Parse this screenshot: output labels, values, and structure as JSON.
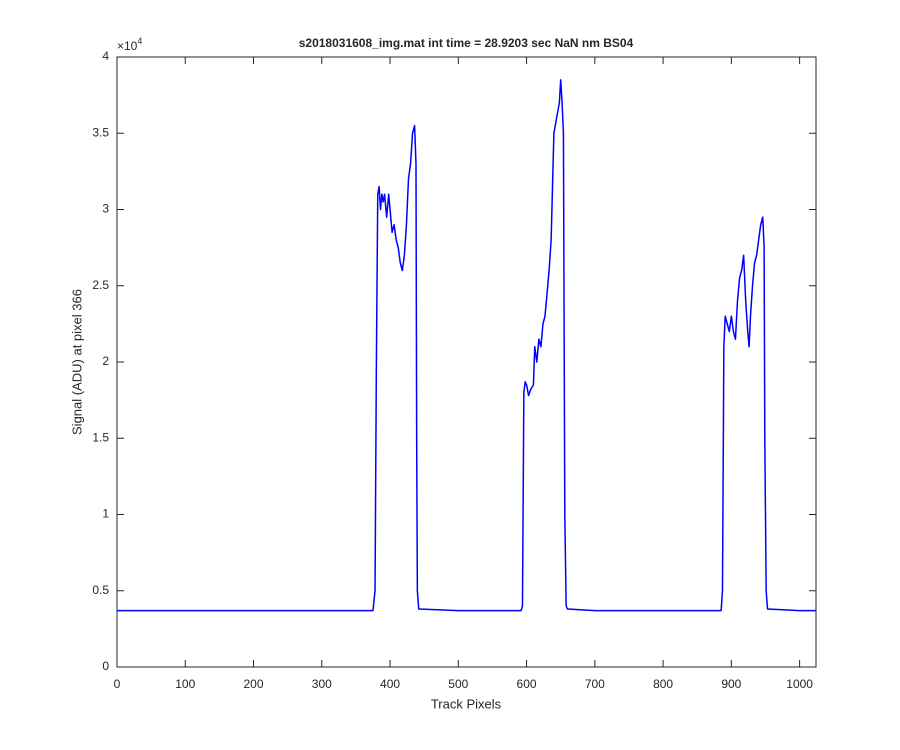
{
  "chart_data": {
    "type": "line",
    "title": "s2018031608_img.mat int time = 28.9203 sec  NaN nm BS04",
    "x_label": "Track Pixels",
    "y_label": "Signal (ADU) at pixel 366",
    "y_multiplier_label": "×10",
    "y_exponent": 4,
    "color": "#0000ff",
    "xlim": [
      0,
      1024
    ],
    "ylim": [
      0,
      4
    ],
    "xticks": [
      0,
      100,
      200,
      300,
      400,
      500,
      600,
      700,
      800,
      900,
      1000
    ],
    "yticks": [
      0,
      0.5,
      1,
      1.5,
      2,
      2.5,
      3,
      3.5,
      4
    ],
    "x": [
      0,
      50,
      100,
      150,
      200,
      250,
      300,
      350,
      375,
      378,
      380,
      382,
      384,
      386,
      388,
      390,
      392,
      395,
      398,
      400,
      403,
      406,
      409,
      412,
      415,
      418,
      421,
      424,
      427,
      430,
      433,
      436,
      438,
      439,
      440,
      442,
      500,
      550,
      592,
      594,
      596,
      598,
      600,
      603,
      606,
      610,
      612,
      615,
      618,
      621,
      624,
      627,
      630,
      633,
      636,
      640,
      644,
      648,
      650,
      652,
      654,
      656,
      658,
      660,
      700,
      750,
      800,
      850,
      885,
      887,
      889,
      891,
      894,
      897,
      900,
      903,
      906,
      909,
      912,
      915,
      918,
      921,
      924,
      926,
      928,
      931,
      934,
      937,
      940,
      943,
      946,
      948,
      949,
      951,
      953,
      1000,
      1024
    ],
    "values": [
      0.37,
      0.37,
      0.37,
      0.37,
      0.37,
      0.37,
      0.37,
      0.37,
      0.37,
      0.5,
      2.0,
      3.1,
      3.15,
      3.0,
      3.1,
      3.05,
      3.1,
      2.95,
      3.1,
      3.0,
      2.85,
      2.9,
      2.8,
      2.75,
      2.65,
      2.6,
      2.7,
      2.9,
      3.2,
      3.3,
      3.5,
      3.55,
      3.3,
      1.5,
      0.5,
      0.38,
      0.37,
      0.37,
      0.37,
      0.4,
      1.8,
      1.87,
      1.85,
      1.78,
      1.82,
      1.85,
      2.1,
      2.0,
      2.15,
      2.1,
      2.25,
      2.3,
      2.45,
      2.6,
      2.8,
      3.5,
      3.6,
      3.7,
      3.85,
      3.7,
      3.5,
      1.0,
      0.4,
      0.38,
      0.37,
      0.37,
      0.37,
      0.37,
      0.37,
      0.5,
      2.1,
      2.3,
      2.25,
      2.2,
      2.3,
      2.2,
      2.15,
      2.4,
      2.55,
      2.6,
      2.7,
      2.4,
      2.2,
      2.1,
      2.3,
      2.5,
      2.65,
      2.7,
      2.8,
      2.9,
      2.95,
      2.75,
      1.5,
      0.5,
      0.38,
      0.37,
      0.37
    ]
  }
}
